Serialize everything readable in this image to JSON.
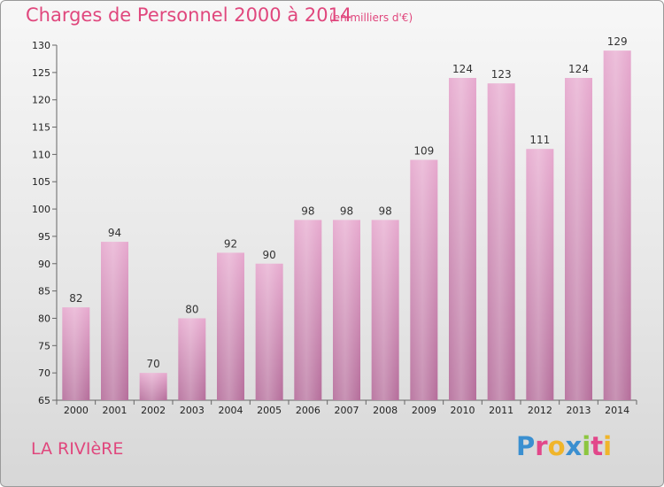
{
  "title": "Charges de Personnel 2000 à 2014",
  "subtitle": "(en milliers d'€)",
  "place": "LA RIVIèRE",
  "brand": {
    "letters": [
      "P",
      "r",
      "o",
      "x",
      "i",
      "t",
      "i"
    ],
    "colors": [
      "#3a8fd0",
      "#e2478a",
      "#f0b52a",
      "#3a8fd0",
      "#8cc63f",
      "#e2478a",
      "#f0b52a"
    ]
  },
  "colors": {
    "bar": "#d98fb9",
    "accent": "#e0477d"
  },
  "chart_data": {
    "type": "bar",
    "title": "Charges de Personnel 2000 à 2014",
    "subtitle": "(en milliers d'€)",
    "categories": [
      "2000",
      "2001",
      "2002",
      "2003",
      "2004",
      "2005",
      "2006",
      "2007",
      "2008",
      "2009",
      "2010",
      "2011",
      "2012",
      "2013",
      "2014"
    ],
    "values": [
      82,
      94,
      70,
      80,
      92,
      90,
      98,
      98,
      98,
      109,
      124,
      123,
      111,
      124,
      129
    ],
    "ylim": [
      65,
      130
    ],
    "yticks": [
      65,
      70,
      75,
      80,
      85,
      90,
      95,
      100,
      105,
      110,
      115,
      120,
      125,
      130
    ],
    "grid": false,
    "legend": "none"
  }
}
